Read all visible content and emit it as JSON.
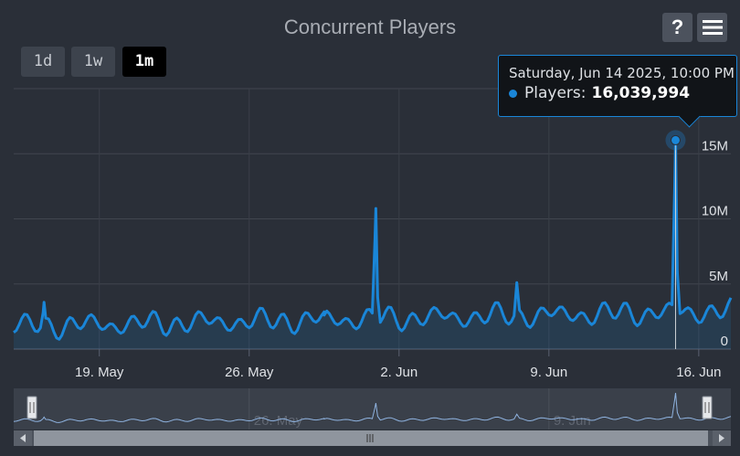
{
  "header": {
    "title": "Concurrent Players",
    "ranges": [
      "1d",
      "1w",
      "1m"
    ],
    "active_range": "1m",
    "help_label": "?",
    "menu_icon": "hamburger-icon"
  },
  "tooltip": {
    "date": "Saturday, Jun 14 2025, 10:00 PM",
    "series_label": "Players:",
    "value": "16,039,994"
  },
  "colors": {
    "line": "#1a86d8",
    "background": "#2a2f38",
    "navigator_line": "#8fb3e0"
  },
  "chart_data": {
    "type": "line",
    "title": "Concurrent Players",
    "series": [
      {
        "name": "Players"
      }
    ],
    "x_start": "2025-05-15",
    "x_end": "2025-06-16",
    "ylim": [
      0,
      20000000
    ],
    "y_ticks": [
      "0",
      "5M",
      "10M",
      "15M"
    ],
    "x_ticks": [
      "19. May",
      "26. May",
      "2. Jun",
      "9. Jun",
      "16. Jun"
    ],
    "navigator_labels": [
      "26. May",
      "9. Jun"
    ],
    "grid": true,
    "spikes": [
      {
        "date": "2025-05-16 10:00",
        "value": 3600000
      },
      {
        "date": "2025-05-29 12:00",
        "value": 2600000
      },
      {
        "date": "2025-05-31 22:00",
        "value": 10800000
      },
      {
        "date": "2025-06-07 12:00",
        "value": 5100000
      },
      {
        "date": "2025-06-14 22:00",
        "value": 16039994
      }
    ]
  }
}
